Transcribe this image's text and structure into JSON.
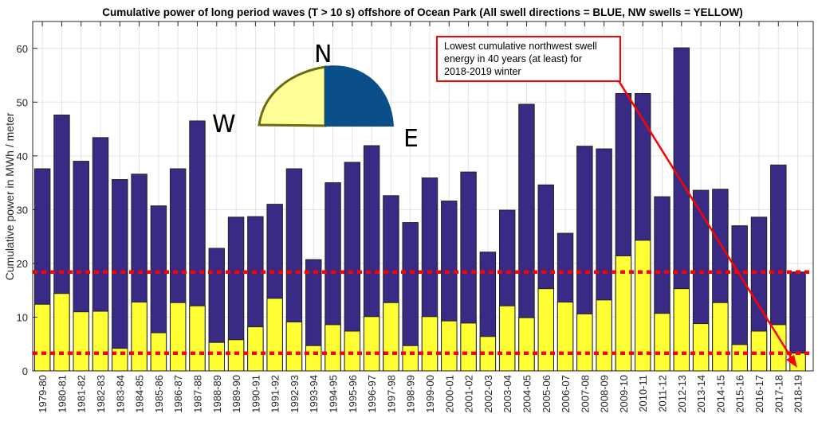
{
  "chart_data": {
    "type": "bar",
    "stacked_overlay": true,
    "title": "Cumulative power of long period waves (T > 10 s) offshore of Ocean Park (All swell directions = BLUE, NW swells = YELLOW)",
    "xlabel": "",
    "ylabel": "Cumulative power in MWh / meter",
    "ylim": [
      0,
      65
    ],
    "yticks": [
      0,
      10,
      20,
      30,
      40,
      50,
      60
    ],
    "grid": true,
    "categories": [
      "1979-80",
      "1980-81",
      "1981-82",
      "1982-83",
      "1983-84",
      "1984-85",
      "1985-86",
      "1986-87",
      "1987-88",
      "1988-89",
      "1989-90",
      "1990-91",
      "1991-92",
      "1992-93",
      "1993-94",
      "1994-95",
      "1995-96",
      "1996-97",
      "1997-98",
      "1998-99",
      "1999-00",
      "2000-01",
      "2001-02",
      "2002-03",
      "2003-04",
      "2004-05",
      "2005-06",
      "2006-07",
      "2007-08",
      "2008-09",
      "2009-10",
      "2010-11",
      "2011-12",
      "2012-13",
      "2013-14",
      "2014-15",
      "2015-16",
      "2016-17",
      "2017-18",
      "2018-19"
    ],
    "series": [
      {
        "color": "#382a85",
        "values": [
          37.6,
          47.6,
          39.0,
          43.4,
          35.6,
          36.6,
          30.7,
          37.6,
          46.5,
          22.8,
          28.6,
          28.7,
          31.0,
          37.6,
          20.7,
          35.0,
          38.8,
          41.9,
          32.6,
          27.6,
          35.9,
          31.6,
          37.0,
          22.1,
          29.9,
          49.6,
          34.6,
          25.6,
          41.8,
          41.3,
          51.6,
          51.6,
          32.4,
          60.1,
          33.6,
          33.8,
          27.0,
          28.6,
          38.3,
          18.4
        ]
      },
      {
        "color": "#ffff33",
        "values": [
          12.4,
          14.4,
          11.0,
          11.1,
          4.2,
          12.8,
          7.1,
          12.7,
          12.1,
          5.3,
          5.8,
          8.2,
          13.5,
          9.1,
          4.7,
          8.6,
          7.4,
          10.1,
          12.7,
          4.7,
          10.1,
          9.3,
          8.9,
          6.4,
          12.1,
          9.9,
          15.3,
          12.8,
          10.6,
          13.2,
          21.4,
          24.3,
          10.7,
          15.3,
          8.8,
          12.7,
          4.9,
          7.4,
          8.6,
          3.3
        ]
      }
    ],
    "reference_lines": [
      {
        "y": 18.4,
        "color": "#ff0000",
        "style": "dotted"
      },
      {
        "y": 3.3,
        "color": "#ff0000",
        "style": "dotted"
      }
    ],
    "annotation": {
      "text_lines": [
        "Lowest cumulative northwest swell",
        "energy in 40 years (at least) for",
        "2018-2019 winter"
      ],
      "color": "#ff0000",
      "points_to": "2018-19"
    },
    "compass": {
      "n": "N",
      "w": "W",
      "e": "E",
      "nw_color": "#ffff99",
      "ne_color": "#0b4f8a"
    }
  }
}
